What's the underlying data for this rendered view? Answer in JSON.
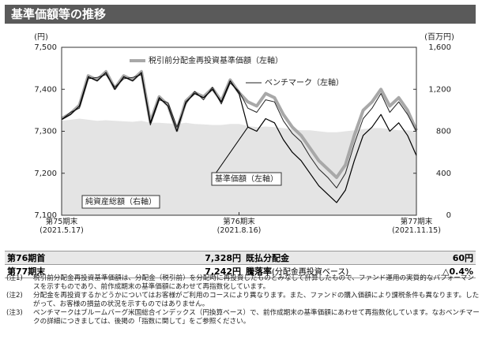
{
  "header": {
    "title": "基準価額等の推移"
  },
  "chart_data": {
    "type": "line",
    "ylabel": "(円)",
    "y2label": "(百万円)",
    "categories": [
      "第75期末\n(2021.5.17)",
      null,
      null,
      null,
      null,
      null,
      null,
      null,
      null,
      null,
      null,
      null,
      null,
      null,
      null,
      null,
      null,
      null,
      null,
      null,
      "第76期末\n(2021.8.16)",
      null,
      null,
      null,
      null,
      null,
      null,
      null,
      null,
      null,
      null,
      null,
      null,
      null,
      null,
      null,
      null,
      null,
      null,
      null,
      "第77期末\n(2021.11.15)"
    ],
    "ylim": [
      7100,
      7500
    ],
    "yticks": [
      {
        "value": 7100,
        "label": "7,100"
      },
      {
        "value": 7200,
        "label": "7,200"
      },
      {
        "value": 7300,
        "label": "7,300"
      },
      {
        "value": 7400,
        "label": "7,400"
      },
      {
        "value": 7500,
        "label": "7,500"
      }
    ],
    "y2lim": [
      0,
      1600
    ],
    "y2ticks": [
      0,
      400,
      800,
      {
        "value": 1200,
        "label": "1,200"
      },
      {
        "value": 1600,
        "label": "1,600"
      }
    ],
    "series": [
      {
        "name": "純資産総額（右軸）",
        "type": "area",
        "axis": "y2",
        "color": "#e4e4e4",
        "values": [
          900,
          910,
          920,
          910,
          900,
          905,
          900,
          895,
          890,
          900,
          880,
          880,
          875,
          870,
          880,
          870,
          865,
          860,
          860,
          870,
          870,
          850,
          840,
          845,
          840,
          830,
          820,
          810,
          810,
          800,
          790,
          790,
          800,
          810,
          820,
          830,
          830,
          820,
          810,
          810,
          800
        ]
      },
      {
        "name": "税引前分配金再投資基準価額（左軸）",
        "color": "#a8a8a8",
        "width": 4,
        "values": [
          7330,
          7342,
          7362,
          7432,
          7422,
          7442,
          7402,
          7432,
          7422,
          7442,
          7322,
          7382,
          7362,
          7302,
          7372,
          7392,
          7382,
          7402,
          7372,
          7422,
          7392,
          7370,
          7360,
          7390,
          7380,
          7340,
          7310,
          7290,
          7260,
          7230,
          7210,
          7190,
          7220,
          7290,
          7350,
          7370,
          7400,
          7360,
          7380,
          7350,
          7302
        ]
      },
      {
        "name": "ベンチマーク（左軸）",
        "color": "#222222",
        "width": 1,
        "values": [
          7328,
          7345,
          7355,
          7425,
          7428,
          7435,
          7405,
          7425,
          7428,
          7435,
          7315,
          7375,
          7368,
          7310,
          7365,
          7395,
          7375,
          7405,
          7365,
          7415,
          7395,
          7355,
          7345,
          7375,
          7370,
          7325,
          7295,
          7275,
          7240,
          7210,
          7190,
          7165,
          7200,
          7270,
          7330,
          7355,
          7390,
          7345,
          7370,
          7340,
          7300
        ]
      },
      {
        "name": "基準価額（左軸）",
        "color": "#000000",
        "width": 1.2,
        "values": [
          7328,
          7340,
          7360,
          7430,
          7420,
          7440,
          7400,
          7430,
          7420,
          7440,
          7320,
          7380,
          7360,
          7300,
          7370,
          7390,
          7380,
          7400,
          7370,
          7420,
          7390,
          7310,
          7300,
          7330,
          7320,
          7280,
          7250,
          7230,
          7200,
          7170,
          7150,
          7130,
          7160,
          7230,
          7290,
          7310,
          7340,
          7300,
          7320,
          7290,
          7242
        ]
      }
    ]
  },
  "summary": {
    "rows": [
      {
        "label": "第76期首",
        "value": "7,328円",
        "label2": "既払分配金",
        "note": "",
        "value2": "60円"
      },
      {
        "label": "第77期末",
        "value": "7,242円",
        "label2": "騰落率",
        "note": "(分配金再投資ベース)",
        "value2": "△0.4%"
      }
    ]
  },
  "notes": [
    {
      "mark": "(注1)",
      "text": "税引前分配金再投資基準価額は、分配金（税引前）を分配時に再投資したものとみなして計算したもので、ファンド運用の実質的なパフォーマンスを示すものであり、前作成期末の基準価額にあわせて再指数化しています。"
    },
    {
      "mark": "(注2)",
      "text": "分配金を再投資するかどうかについてはお客様がご利用のコースにより異なります。また、ファンドの購入価額により課税条件も異なります。したがって、お客様の損益の状況を示すものではありません。"
    },
    {
      "mark": "(注3)",
      "text": "ベンチマークはブルームバーグ米国総合インデックス（円換算ベース）で、前作成期末の基準価額にあわせて再指数化しています。なおベンチマークの詳細につきましては、後掲の「指数に関して」をご参照ください。"
    }
  ]
}
